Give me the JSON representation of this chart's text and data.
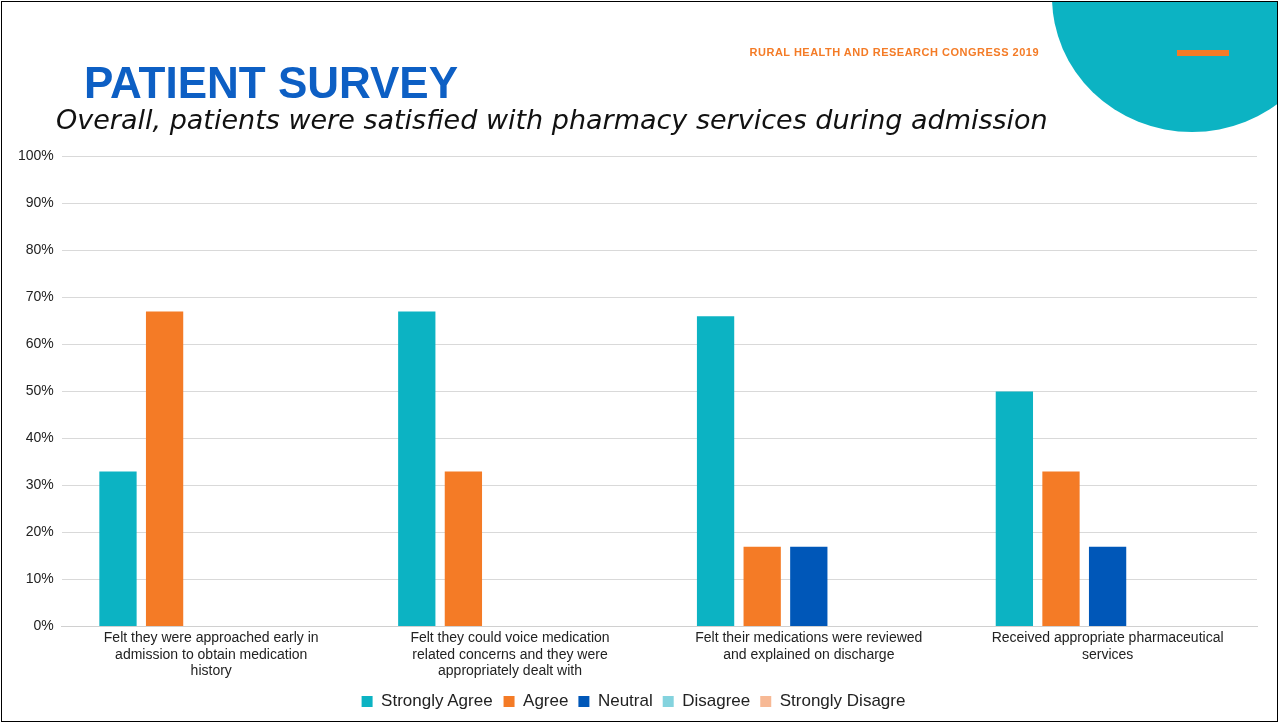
{
  "chart_data": {
    "type": "bar",
    "title": "PATIENT SURVEY",
    "subtitle": "Overall,  patients were satisfied with pharmacy services during admission",
    "annotations": [
      "RURAL HEALTH AND RESEARCH  CONGRESS 2019"
    ],
    "categories": [
      "Felt they were approached early in admission to obtain medication history",
      "Felt they could voice medication related concerns and they were appropriately dealt with",
      "Felt their medications were reviewed and explained on discharge",
      "Received appropriate pharmaceutical services"
    ],
    "series": [
      {
        "name": "Strongly Agree",
        "color": "#0cb3c3",
        "values": [
          33,
          67,
          66,
          50
        ]
      },
      {
        "name": "Agree",
        "color": "#f47b26",
        "values": [
          67,
          33,
          17,
          33
        ]
      },
      {
        "name": "Neutral",
        "color": "#0057b8",
        "values": [
          0,
          0,
          17,
          17
        ]
      },
      {
        "name": "Disagree",
        "color": "#84d3de",
        "values": [
          0,
          0,
          0,
          0
        ]
      },
      {
        "name": "Strongly Disagre",
        "color": "#f7b995",
        "values": [
          0,
          0,
          0,
          0
        ]
      }
    ],
    "ylim": [
      0,
      100
    ],
    "yticks": [
      {
        "value": 0,
        "label": "0%"
      },
      {
        "value": 10,
        "label": "10%"
      },
      {
        "value": 20,
        "label": "20%"
      },
      {
        "value": 30,
        "label": "30%"
      },
      {
        "value": 40,
        "label": "40%"
      },
      {
        "value": 50,
        "label": "50%"
      },
      {
        "value": 60,
        "label": "60%"
      },
      {
        "value": 70,
        "label": "70%"
      },
      {
        "value": 80,
        "label": "80%"
      },
      {
        "value": 90,
        "label": "90%"
      },
      {
        "value": 100,
        "label": "100%"
      }
    ],
    "grid": "y",
    "legend": "bottom"
  }
}
